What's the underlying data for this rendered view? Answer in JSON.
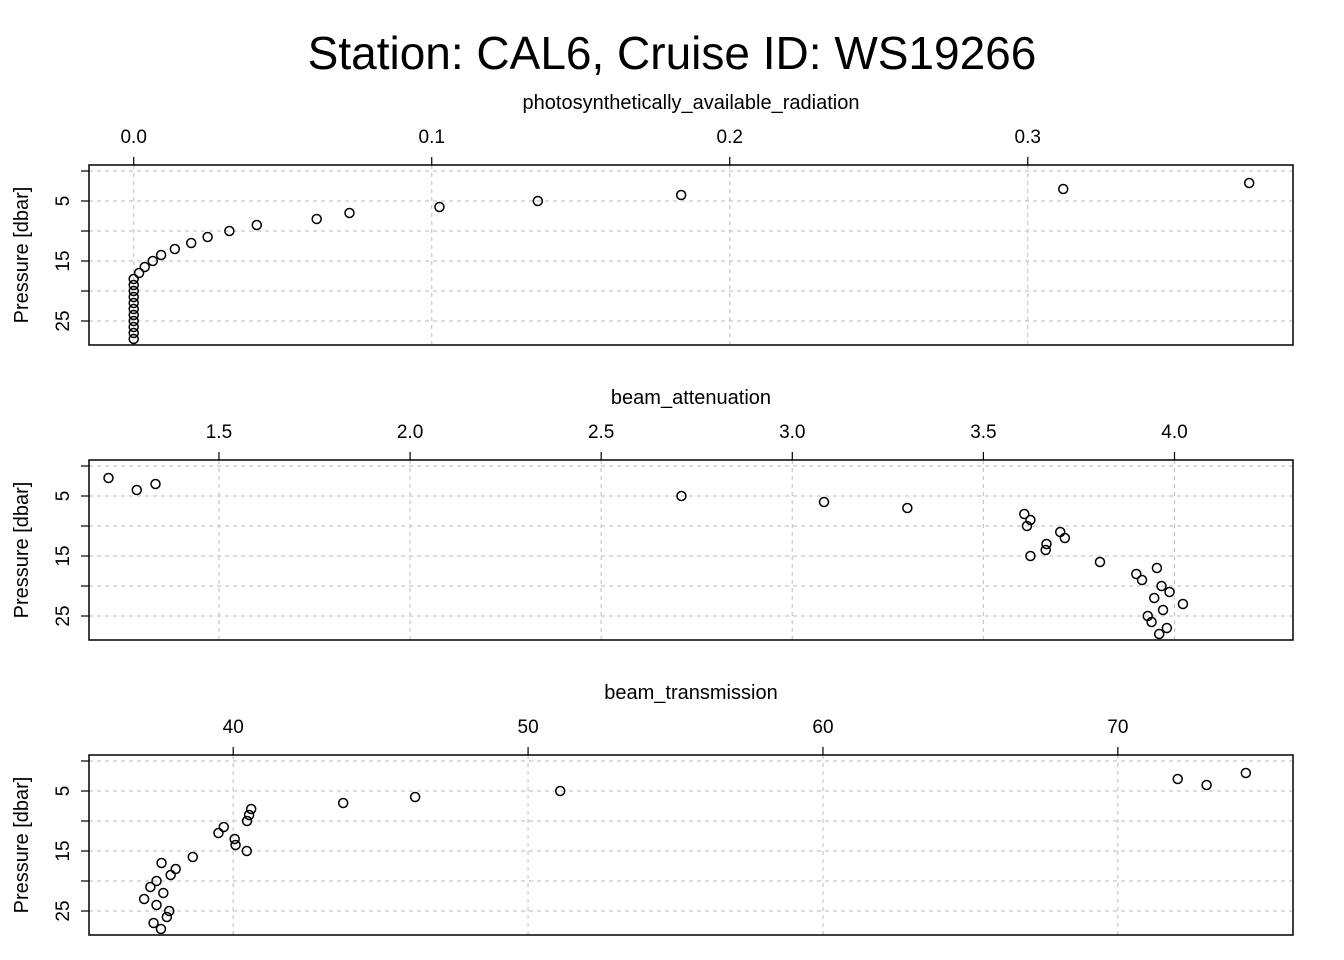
{
  "title": "Station: CAL6, Cruise ID: WS19266",
  "chart_data": [
    {
      "type": "scatter",
      "xlabel": "photosynthetically_available_radiation",
      "ylabel": "Pressure [dbar]",
      "xlim": [
        -0.015,
        0.389
      ],
      "ylim": [
        29,
        -1
      ],
      "xticks": [
        0.0,
        0.1,
        0.2,
        0.3
      ],
      "xtick_labels": [
        "0.0",
        "0.1",
        "0.2",
        "0.3"
      ],
      "yticks": [
        5,
        15,
        25
      ],
      "ytick_labels": [
        "5",
        "15",
        "25"
      ],
      "grid": true,
      "points": [
        [
          0.3743,
          2
        ],
        [
          0.3119,
          3
        ],
        [
          0.1837,
          4
        ],
        [
          0.1356,
          5
        ],
        [
          0.1026,
          6
        ],
        [
          0.0724,
          7
        ],
        [
          0.0614,
          8
        ],
        [
          0.0413,
          9
        ],
        [
          0.0321,
          10
        ],
        [
          0.0248,
          11
        ],
        [
          0.0193,
          12
        ],
        [
          0.0138,
          13
        ],
        [
          0.0092,
          14
        ],
        [
          0.0064,
          15
        ],
        [
          0.0037,
          16
        ],
        [
          0.0018,
          17
        ],
        [
          0.0,
          18
        ],
        [
          0.0,
          19
        ],
        [
          0.0,
          20
        ],
        [
          0.0,
          21
        ],
        [
          0.0,
          22
        ],
        [
          0.0,
          23
        ],
        [
          0.0,
          24
        ],
        [
          0.0,
          25
        ],
        [
          0.0,
          26
        ],
        [
          0.0,
          27
        ],
        [
          0.0,
          28
        ]
      ]
    },
    {
      "type": "scatter",
      "xlabel": "beam_attenuation",
      "ylabel": "Pressure [dbar]",
      "xlim": [
        1.16,
        4.31
      ],
      "ylim": [
        29,
        -1
      ],
      "xticks": [
        1.5,
        2.0,
        2.5,
        3.0,
        3.5,
        4.0
      ],
      "xtick_labels": [
        "1.5",
        "2.0",
        "2.5",
        "3.0",
        "3.5",
        "4.0"
      ],
      "yticks": [
        5,
        15,
        25
      ],
      "ytick_labels": [
        "5",
        "15",
        "25"
      ],
      "grid": true,
      "points": [
        [
          1.211,
          2
        ],
        [
          1.334,
          3
        ],
        [
          1.285,
          4
        ],
        [
          2.71,
          5
        ],
        [
          3.083,
          6
        ],
        [
          3.301,
          7
        ],
        [
          3.607,
          8
        ],
        [
          3.623,
          9
        ],
        [
          3.614,
          10
        ],
        [
          3.701,
          11
        ],
        [
          3.713,
          12
        ],
        [
          3.665,
          13
        ],
        [
          3.663,
          14
        ],
        [
          3.623,
          15
        ],
        [
          3.805,
          16
        ],
        [
          3.954,
          17
        ],
        [
          3.9,
          18
        ],
        [
          3.915,
          19
        ],
        [
          3.966,
          20
        ],
        [
          3.987,
          21
        ],
        [
          3.947,
          22
        ],
        [
          4.022,
          23
        ],
        [
          3.97,
          24
        ],
        [
          3.93,
          25
        ],
        [
          3.94,
          26
        ],
        [
          3.98,
          27
        ],
        [
          3.96,
          28
        ]
      ]
    },
    {
      "type": "scatter",
      "xlabel": "beam_transmission",
      "ylabel": "Pressure [dbar]",
      "xlim": [
        35.11,
        75.94
      ],
      "ylim": [
        29,
        -1
      ],
      "xticks": [
        40,
        50,
        60,
        70
      ],
      "xtick_labels": [
        "40",
        "50",
        "60",
        "70"
      ],
      "yticks": [
        5,
        15,
        25
      ],
      "ytick_labels": [
        "5",
        "15",
        "25"
      ],
      "grid": true,
      "points": [
        [
          74.34,
          2
        ],
        [
          72.03,
          3
        ],
        [
          73.01,
          4
        ],
        [
          51.09,
          5
        ],
        [
          46.17,
          6
        ],
        [
          43.73,
          7
        ],
        [
          40.61,
          8
        ],
        [
          40.54,
          9
        ],
        [
          40.47,
          10
        ],
        [
          39.68,
          11
        ],
        [
          39.5,
          12
        ],
        [
          40.05,
          13
        ],
        [
          40.08,
          14
        ],
        [
          40.46,
          15
        ],
        [
          38.63,
          16
        ],
        [
          37.57,
          17
        ],
        [
          38.05,
          18
        ],
        [
          37.88,
          19
        ],
        [
          37.4,
          20
        ],
        [
          37.19,
          21
        ],
        [
          37.63,
          22
        ],
        [
          36.98,
          23
        ],
        [
          37.4,
          24
        ],
        [
          37.83,
          25
        ],
        [
          37.75,
          26
        ],
        [
          37.3,
          27
        ],
        [
          37.55,
          28
        ]
      ]
    }
  ]
}
